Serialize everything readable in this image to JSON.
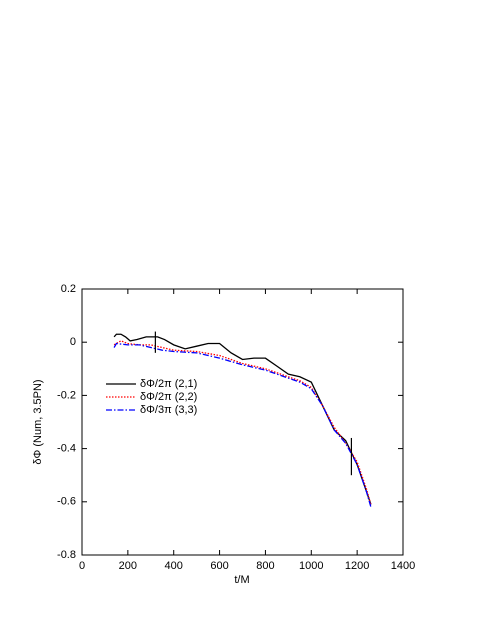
{
  "chart_data": {
    "type": "line",
    "xlabel": "t/M",
    "ylabel": "δΦ (Num, 3.5PN)",
    "xlim": [
      0,
      1400
    ],
    "xticks": [
      0,
      200,
      400,
      600,
      800,
      1000,
      1200,
      1400
    ],
    "ylim": [
      -0.8,
      0.2
    ],
    "yticks": [
      -0.8,
      -0.6,
      -0.4,
      -0.2,
      0,
      0.2
    ],
    "legend": "upper-left",
    "series": [
      {
        "name": "δΦ/2π (2,1)",
        "color": "#000000",
        "style": "solid",
        "x": [
          140,
          150,
          170,
          190,
          210,
          240,
          280,
          330,
          360,
          400,
          450,
          500,
          550,
          600,
          650,
          700,
          750,
          800,
          850,
          900,
          950,
          1000,
          1050,
          1100,
          1150,
          1200,
          1240,
          1260
        ],
        "values": [
          0.02,
          0.03,
          0.03,
          0.02,
          0.005,
          0.01,
          0.02,
          0.02,
          0.01,
          -0.01,
          -0.025,
          -0.015,
          -0.005,
          -0.005,
          -0.04,
          -0.065,
          -0.06,
          -0.06,
          -0.09,
          -0.12,
          -0.13,
          -0.15,
          -0.24,
          -0.33,
          -0.37,
          -0.46,
          -0.56,
          -0.61
        ]
      },
      {
        "name": "δΦ/2π (2,2)",
        "color": "#ff0000",
        "style": "dotted",
        "x": [
          140,
          170,
          200,
          250,
          300,
          350,
          400,
          500,
          600,
          700,
          800,
          900,
          950,
          1000,
          1050,
          1100,
          1150,
          1200,
          1240,
          1260
        ],
        "values": [
          -0.01,
          0.005,
          -0.005,
          -0.01,
          -0.01,
          -0.02,
          -0.03,
          -0.035,
          -0.05,
          -0.08,
          -0.1,
          -0.13,
          -0.145,
          -0.17,
          -0.24,
          -0.32,
          -0.38,
          -0.45,
          -0.55,
          -0.61
        ]
      },
      {
        "name": "δΦ/3π (3,3)",
        "color": "#0000ff",
        "style": "dashdot",
        "x": [
          140,
          150,
          200,
          250,
          300,
          350,
          400,
          500,
          600,
          700,
          800,
          900,
          950,
          1000,
          1050,
          1100,
          1150,
          1200,
          1240,
          1260
        ],
        "values": [
          -0.02,
          -0.005,
          -0.01,
          -0.01,
          -0.02,
          -0.03,
          -0.035,
          -0.04,
          -0.06,
          -0.085,
          -0.105,
          -0.135,
          -0.15,
          -0.175,
          -0.24,
          -0.33,
          -0.38,
          -0.46,
          -0.56,
          -0.62
        ]
      }
    ],
    "vertical_lines": [
      {
        "x": 320,
        "y": [
          -0.04,
          0.04
        ]
      },
      {
        "x": 1175,
        "y": [
          -0.5,
          -0.36
        ]
      }
    ]
  }
}
